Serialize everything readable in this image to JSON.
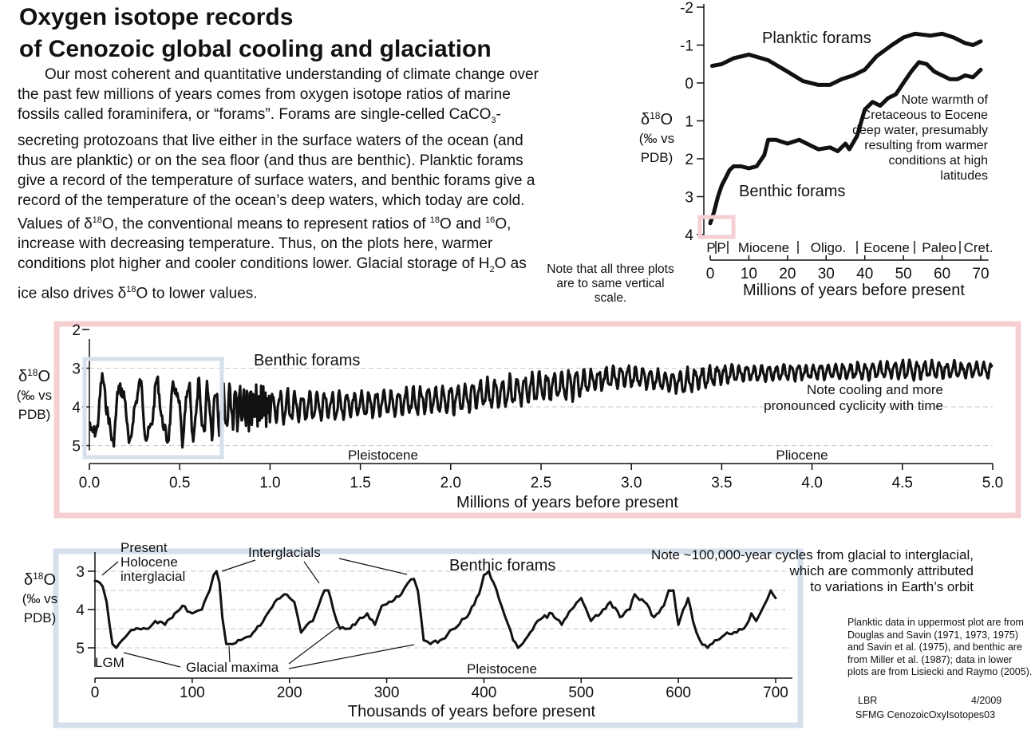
{
  "title": {
    "line1": "Oxygen isotope records",
    "line2": "of Cenozoic global cooling and glaciation"
  },
  "intro": {
    "p1": "Our most coherent and quantitative understanding of climate change over the past few millions of years comes from oxygen isotope ratios of marine fossils called foraminifera, or “forams”. Forams are single-celled CaCO",
    "sub3": "3",
    "p2": "-secreting protozoans that live either in the surface waters of the ocean (and thus are planktic) or on the sea floor (and thus are benthic).  Planktic forams give a record of the temperature of surface waters, and benthic forams give a record of the temperature of the ocean’s deep waters, which today are cold. Values of δ",
    "sup18a": "18",
    "p3": "O, the conventional means to represent ratios of ",
    "sup18b": "18",
    "p4": "O and ",
    "sup16": "16",
    "p5": "O, increase with decreasing temperature.  Thus, on the plots here, warmer conditions plot higher and cooler conditions lower.  Glacial storage of H",
    "sub2": "2",
    "p6": "O as ice also drives δ",
    "sup18c": "18",
    "p7": "O to lower values."
  },
  "scale_note": "Note that all three plots are to same vertical scale.",
  "credits": "Planktic data in uppermost plot are from Douglas and Savin (1971, 1973, 1975) and Savin et al. (1975), and benthic are from Miller et al. (1987); data in lower plots are from Lisiecki and Raymo (2005).",
  "footer": {
    "author": "LBR",
    "date": "4/2009",
    "id": "SFMG CenozoicOxyIsotopes03"
  },
  "colors": {
    "pink_box": "#f6cfd2",
    "blue_box": "#d5e0ec",
    "curve": "#111111",
    "planktic": "#444444"
  },
  "chart_data": [
    {
      "type": "line",
      "ylabel": {
        "delta": "δ",
        "sup": "18",
        "O": "O",
        "line2": "(‰ vs",
        "line3": "PDB)"
      },
      "xlabel": "Millions of years before present",
      "xlim": [
        0,
        72
      ],
      "ylim": [
        -2,
        4
      ],
      "y_inverted": true,
      "x_ticks": [
        0,
        10,
        20,
        30,
        40,
        50,
        60,
        70
      ],
      "y_ticks": [
        -2,
        -1,
        0,
        1,
        2,
        3,
        4
      ],
      "epochs": [
        "P",
        "P",
        "Miocene",
        "Oligo.",
        "Eocene",
        "Paleo",
        "Cret."
      ],
      "series": [
        {
          "name": "Planktic forams",
          "x": [
            0.5,
            3,
            6,
            10,
            15,
            20,
            24,
            28,
            31,
            34,
            37,
            40,
            43,
            47,
            50,
            53,
            57,
            60,
            63,
            66,
            68,
            70
          ],
          "y": [
            -0.45,
            -0.5,
            -0.65,
            -0.75,
            -0.6,
            -0.3,
            -0.05,
            0.05,
            0.05,
            -0.1,
            -0.2,
            -0.35,
            -0.7,
            -1.0,
            -1.2,
            -1.3,
            -1.25,
            -1.3,
            -1.2,
            -1.05,
            -1.0,
            -1.1
          ]
        },
        {
          "name": "Benthic forams",
          "x": [
            0,
            1,
            2,
            3,
            4,
            5,
            6,
            8,
            10,
            12,
            14,
            15,
            17,
            20,
            23,
            26,
            28,
            31,
            33,
            35,
            36,
            38,
            40,
            42,
            44,
            46,
            48,
            50,
            52,
            54,
            56,
            58,
            60,
            62,
            64,
            66,
            68,
            70
          ],
          "y": [
            3.7,
            3.4,
            3.0,
            2.7,
            2.5,
            2.3,
            2.2,
            2.2,
            2.25,
            2.2,
            1.9,
            1.5,
            1.5,
            1.6,
            1.5,
            1.65,
            1.75,
            1.7,
            1.8,
            1.6,
            1.75,
            1.4,
            0.7,
            0.5,
            0.6,
            0.4,
            0.3,
            0.0,
            -0.3,
            -0.55,
            -0.5,
            -0.3,
            -0.2,
            -0.1,
            -0.1,
            -0.2,
            -0.15,
            -0.35
          ]
        }
      ],
      "annotations": {
        "note": "Note warmth of Cretaceous to Eocene deep water, presumably resulting from  warmer conditions at high latitudes"
      }
    },
    {
      "type": "line",
      "ylabel": {
        "delta": "δ",
        "sup": "18",
        "O": "O",
        "line2": "(‰ vs",
        "line3": "PDB)"
      },
      "xlabel": "Millions of years before present",
      "xlim": [
        0,
        5
      ],
      "ylim": [
        2,
        5
      ],
      "y_inverted": true,
      "x_ticks": [
        "0.0",
        "0.5",
        "1.0",
        "1.5",
        "2.0",
        "2.5",
        "3.0",
        "3.5",
        "4.0",
        "4.5",
        "5.0"
      ],
      "y_ticks": [
        2,
        3,
        4,
        5
      ],
      "series": [
        {
          "name": "Benthic forams",
          "envelope": {
            "x": [
              0,
              0.5,
              0.8,
              1.0,
              1.2,
              1.5,
              2.0,
              2.5,
              2.7,
              2.8,
              3.0,
              3.2,
              3.3,
              3.5,
              4.0,
              4.5,
              5.0
            ],
            "low": [
              3.2,
              3.3,
              3.4,
              3.5,
              3.6,
              3.6,
              3.4,
              3.1,
              3.0,
              3.0,
              2.9,
              3.1,
              3.0,
              2.9,
              2.9,
              2.8,
              2.85
            ],
            "high": [
              5.0,
              5.0,
              4.6,
              4.5,
              4.4,
              4.3,
              4.2,
              3.9,
              3.8,
              3.6,
              3.5,
              3.6,
              3.7,
              3.4,
              3.3,
              3.3,
              3.25
            ],
            "period_myr": [
              0.1,
              0.1,
              0.07,
              0.041,
              0.041,
              0.041,
              0.041,
              0.041,
              0.041,
              0.041,
              0.041,
              0.041,
              0.041,
              0.041,
              0.041,
              0.041,
              0.041
            ]
          }
        }
      ],
      "epochs": [
        "Pleistocene",
        "Pliocene"
      ],
      "annotations": {
        "note": "Note cooling and more pronounced cyclicity with time"
      }
    },
    {
      "type": "line",
      "ylabel": {
        "delta": "δ",
        "sup": "18",
        "O": "O",
        "line2": "(‰ vs",
        "line3": "PDB)"
      },
      "xlabel": "Thousands of years before present",
      "xlim": [
        0,
        710
      ],
      "ylim": [
        2.5,
        5.5
      ],
      "y_inverted": true,
      "x_ticks": [
        0,
        100,
        200,
        300,
        400,
        500,
        600,
        700
      ],
      "y_ticks": [
        3,
        4,
        5
      ],
      "series": [
        {
          "name": "Benthic forams",
          "x": [
            0,
            5,
            8,
            12,
            15,
            18,
            22,
            28,
            35,
            45,
            55,
            62,
            72,
            82,
            90,
            100,
            110,
            118,
            122,
            125,
            128,
            131,
            135,
            142,
            150,
            160,
            175,
            185,
            195,
            205,
            212,
            218,
            224,
            230,
            236,
            240,
            245,
            252,
            260,
            270,
            280,
            288,
            295,
            305,
            315,
            322,
            328,
            332,
            338,
            345,
            355,
            370,
            385,
            395,
            400,
            405,
            410,
            418,
            425,
            430,
            435,
            445,
            455,
            470,
            480,
            490,
            500,
            510,
            520,
            530,
            540,
            550,
            555,
            565,
            575,
            585,
            590,
            595,
            600,
            605,
            610,
            615,
            622,
            630,
            640,
            650,
            660,
            670,
            675,
            680,
            688,
            695,
            700
          ],
          "y": [
            3.25,
            3.3,
            3.4,
            3.8,
            4.4,
            4.9,
            5.0,
            4.8,
            4.6,
            4.5,
            4.5,
            4.3,
            4.4,
            4.1,
            3.9,
            4.1,
            4.0,
            3.5,
            3.1,
            3.0,
            3.3,
            4.2,
            4.9,
            4.9,
            4.8,
            4.7,
            4.2,
            3.8,
            3.6,
            3.8,
            4.6,
            4.4,
            4.3,
            3.9,
            3.5,
            3.5,
            4.0,
            4.5,
            4.5,
            4.3,
            4.1,
            4.4,
            3.9,
            3.8,
            3.6,
            3.3,
            3.2,
            3.5,
            4.8,
            4.9,
            4.8,
            4.5,
            4.1,
            3.6,
            3.1,
            3.0,
            3.3,
            3.9,
            4.4,
            4.8,
            5.0,
            4.7,
            4.3,
            4.1,
            4.4,
            4.0,
            3.7,
            4.3,
            4.1,
            3.8,
            4.2,
            4.0,
            3.6,
            3.8,
            4.2,
            3.9,
            3.5,
            3.5,
            4.4,
            4.0,
            3.7,
            4.3,
            4.8,
            5.0,
            4.8,
            4.6,
            4.6,
            4.4,
            4.1,
            4.3,
            3.9,
            3.5,
            3.7
          ]
        }
      ],
      "epochs": [
        "Pleistocene"
      ],
      "annotations": {
        "present": "Present Holocene interglacial",
        "interglacials": "Interglacials",
        "glacial_maxima": "Glacial maxima",
        "lgm": "LGM",
        "cycles_note": "Note ~100,000-year cycles from glacial to interglacial, which are commonly attributed to variations in Earth’s orbit"
      }
    }
  ]
}
